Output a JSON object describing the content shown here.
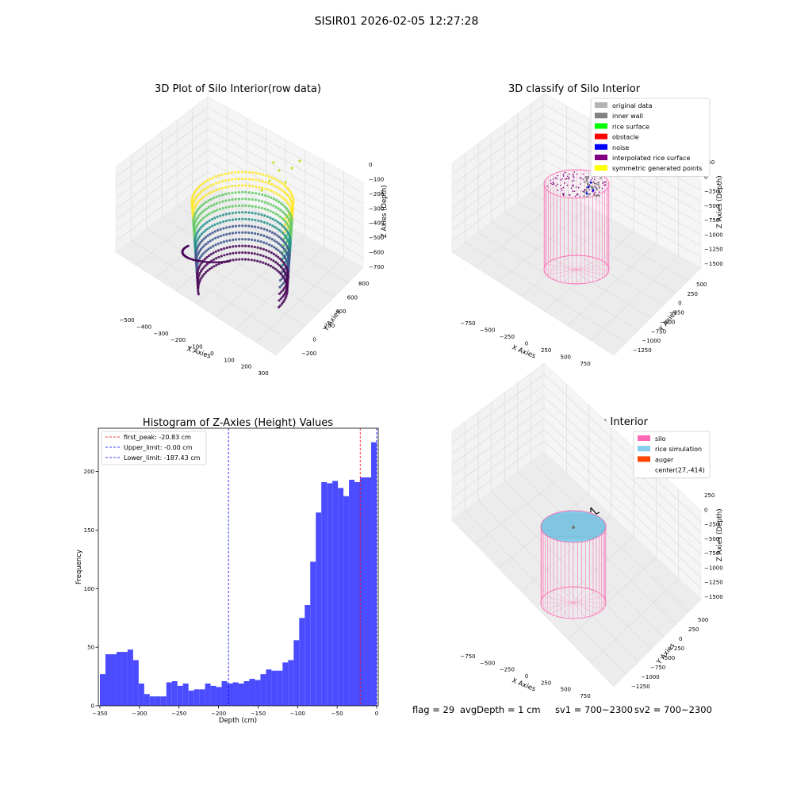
{
  "figure": {
    "title": "SISIR01 2026-02-05 12:27:28"
  },
  "status": {
    "flag": "flag = 29",
    "avg_depth": "avgDepth = 1 cm",
    "sv1": "sv1 = 700~2300",
    "sv2": "sv2 = 700~2300"
  },
  "colors": {
    "hist_bar": "#4b4bff",
    "first_peak_line": "#ff0000",
    "limit_line": "#0000ff",
    "silo": "#ff69b4",
    "rice_simulation": "#87ceeb",
    "auger": "#ff4500",
    "pane": "#f2f2f2",
    "pane_grid": "#d9d9d9"
  },
  "chart_data": [
    {
      "type": "scatter",
      "subtype": "3d",
      "title": "3D Plot of Silo Interior(row data)",
      "xlabel": "X Axies",
      "ylabel": "Y Axies",
      "zlabel": "Z Axies (Depth)",
      "xticks": [
        "−500",
        "−400",
        "−300",
        "−200",
        "−100",
        "0",
        "100",
        "200",
        "300"
      ],
      "yticks": [
        "−200",
        "0",
        "200",
        "400",
        "600",
        "800"
      ],
      "zticks": [
        "0",
        "−100",
        "−200",
        "−300",
        "−400",
        "−500",
        "−600",
        "−700"
      ],
      "colormap": "viridis"
    },
    {
      "type": "scatter",
      "subtype": "3d",
      "title": "3D classify of Silo Interior",
      "xlabel": "X Axies",
      "ylabel": "Y Axies",
      "zlabel": "Z Axies (Depth)",
      "xticks": [
        "−750",
        "−500",
        "−250",
        "0",
        "250",
        "500",
        "750"
      ],
      "yticks": [
        "−1250",
        "−1000",
        "−750",
        "−500",
        "−250",
        "0",
        "250",
        "500"
      ],
      "zticks": [
        "250",
        "0",
        "−250",
        "−500",
        "−750",
        "−1000",
        "−1250",
        "−1500"
      ],
      "legend_position": "top-right",
      "legend": [
        {
          "label": "original data",
          "color": "#b3b3b3"
        },
        {
          "label": "inner wall",
          "color": "#808080"
        },
        {
          "label": "rice surface",
          "color": "#00ff00"
        },
        {
          "label": "obstacle",
          "color": "#ff0000"
        },
        {
          "label": "noise",
          "color": "#0000ff"
        },
        {
          "label": "interpolated rice surface",
          "color": "#800080"
        },
        {
          "label": "symmetric generated points",
          "color": "#ffff00"
        }
      ]
    },
    {
      "type": "bar",
      "subtype": "histogram",
      "title": "Histogram of Z-Axies (Height) Values",
      "xlabel": "Depth (cm)",
      "ylabel": "Frequency",
      "xlim": [
        -352,
        2
      ],
      "ylim": [
        0,
        237
      ],
      "xticks": [
        -350,
        -300,
        -250,
        -200,
        -150,
        -100,
        -50,
        0
      ],
      "yticks": [
        0,
        50,
        100,
        150,
        200
      ],
      "bin_width": 7,
      "bins_start": [
        -350,
        -343,
        -336,
        -329,
        -322,
        -315,
        -308,
        -301,
        -294,
        -287,
        -280,
        -273,
        -266,
        -259,
        -252,
        -245,
        -238,
        -231,
        -224,
        -217,
        -210,
        -203,
        -196,
        -189,
        -182,
        -175,
        -168,
        -161,
        -154,
        -147,
        -140,
        -133,
        -126,
        -119,
        -112,
        -105,
        -98,
        -91,
        -84,
        -77,
        -70,
        -63,
        -56,
        -49,
        -42,
        -35,
        -28,
        -21,
        -14,
        -7
      ],
      "values": [
        27,
        44,
        44,
        46,
        46,
        48,
        39,
        19,
        10,
        8,
        8,
        8,
        20,
        21,
        17,
        19,
        13,
        14,
        14,
        19,
        17,
        16,
        21,
        19,
        20,
        19,
        21,
        23,
        22,
        27,
        31,
        30,
        30,
        37,
        39,
        56,
        75,
        86,
        123,
        165,
        191,
        190,
        192,
        186,
        179,
        193,
        191,
        195,
        195,
        225
      ],
      "vlines": [
        {
          "label": "first_peak: -20.83 cm",
          "x": -20.83,
          "color": "#ff0000"
        },
        {
          "label": "Upper_limit: -0.00 cm",
          "x": -0.0,
          "color": "#0000ff"
        },
        {
          "label": "Lower_limit: -187.43 cm",
          "x": -187.43,
          "color": "#0000ff"
        }
      ],
      "legend_position": "top-left"
    },
    {
      "type": "scatter",
      "subtype": "3d",
      "title": "3D simulation of Silo Interior",
      "xlabel": "X Axies",
      "ylabel": "Y Axies",
      "zlabel": "Z Axies (Depth)",
      "xticks": [
        "−750",
        "−500",
        "−250",
        "0",
        "250",
        "500",
        "750"
      ],
      "yticks": [
        "−1250",
        "−1000",
        "−750",
        "−500",
        "−250",
        "0",
        "250",
        "500"
      ],
      "zticks": [
        "250",
        "0",
        "−250",
        "−500",
        "−750",
        "−1000",
        "−1250",
        "−1500"
      ],
      "legend_position": "top-right",
      "legend": [
        {
          "label": "silo",
          "color": "#ff69b4"
        },
        {
          "label": "rice simulation",
          "color": "#87ceeb"
        },
        {
          "label": "auger",
          "color": "#ff4500"
        },
        {
          "label": "center(27,-414)",
          "color": ""
        }
      ]
    }
  ]
}
